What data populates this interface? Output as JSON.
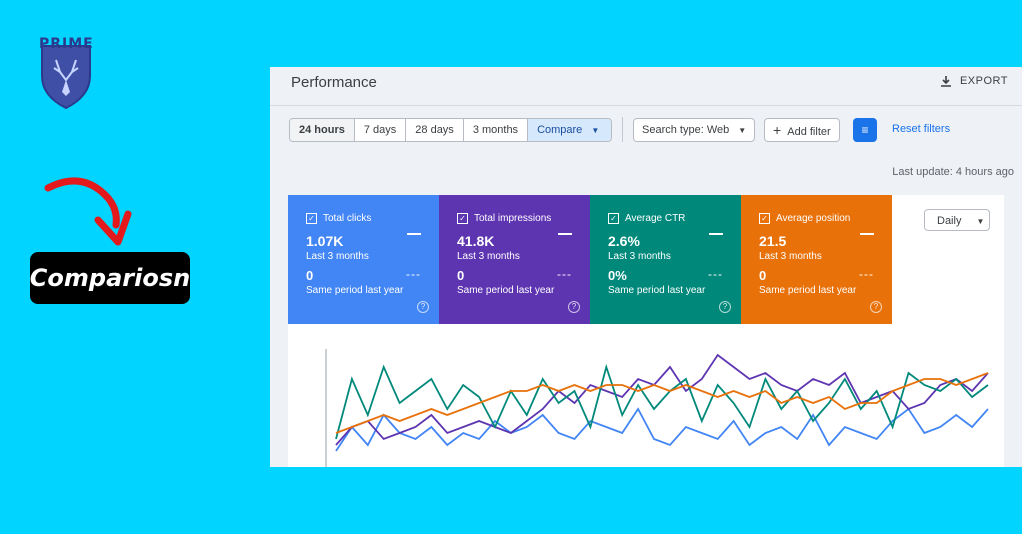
{
  "brand": {
    "logo_text": "PRIME"
  },
  "badge": {
    "label": "Compariosn"
  },
  "header": {
    "title": "Performance",
    "export_label": "EXPORT"
  },
  "date_ranges": [
    {
      "label": "24 hours",
      "active": true
    },
    {
      "label": "7 days"
    },
    {
      "label": "28 days"
    },
    {
      "label": "3 months"
    },
    {
      "label": "Compare",
      "selected": true
    }
  ],
  "filters": {
    "search_type": "Search type: Web",
    "add_filter": "Add filter",
    "reset": "Reset filters"
  },
  "last_update": "Last update: 4 hours ago",
  "granularity": "Daily",
  "metrics": [
    {
      "name": "Total clicks",
      "value": "1.07K",
      "period": "Last 3 months",
      "compare_value": "0",
      "compare_period": "Same period last year",
      "color": "#4285f4"
    },
    {
      "name": "Total impressions",
      "value": "41.8K",
      "period": "Last 3 months",
      "compare_value": "0",
      "compare_period": "Same period last year",
      "color": "#5e35b1"
    },
    {
      "name": "Average CTR",
      "value": "2.6%",
      "period": "Last 3 months",
      "compare_value": "0%",
      "compare_period": "Same period last year",
      "color": "#00897b"
    },
    {
      "name": "Average position",
      "value": "21.5",
      "period": "Last 3 months",
      "compare_value": "0",
      "compare_period": "Same period last year",
      "color": "#e8710a"
    }
  ],
  "chart_data": {
    "type": "line",
    "title": "",
    "xlabel": "",
    "ylabel": "",
    "series": [
      {
        "values": [
          2,
          6,
          3,
          8,
          5,
          4,
          6,
          3,
          5,
          4,
          7,
          5,
          6,
          8,
          5,
          4,
          7,
          6,
          5,
          9,
          4,
          3,
          6,
          5,
          4,
          7,
          3,
          5,
          6,
          4,
          8,
          3,
          6,
          5,
          4,
          7,
          9,
          5,
          6,
          8,
          6,
          9
        ]
      },
      {
        "values": [
          3,
          6,
          7,
          4,
          5,
          6,
          8,
          5,
          6,
          7,
          6,
          5,
          7,
          9,
          12,
          10,
          13,
          12,
          11,
          14,
          13,
          16,
          12,
          14,
          18,
          16,
          14,
          15,
          13,
          12,
          14,
          13,
          15,
          10,
          11,
          12,
          9,
          10,
          13,
          14,
          12,
          15
        ]
      },
      {
        "values": [
          4,
          14,
          8,
          16,
          10,
          12,
          14,
          9,
          13,
          11,
          6,
          12,
          8,
          14,
          10,
          12,
          6,
          16,
          8,
          13,
          9,
          12,
          14,
          7,
          13,
          10,
          6,
          14,
          9,
          12,
          7,
          10,
          14,
          9,
          12,
          6,
          15,
          13,
          12,
          14,
          11,
          13
        ]
      },
      {
        "values": [
          5,
          6,
          7,
          8,
          7,
          8,
          9,
          8,
          9,
          10,
          11,
          12,
          12,
          13,
          12,
          13,
          12,
          13,
          13,
          12,
          13,
          12,
          13,
          12,
          11,
          12,
          11,
          12,
          10,
          11,
          10,
          11,
          9,
          10,
          10,
          12,
          13,
          14,
          14,
          13,
          14,
          15
        ]
      }
    ],
    "colors": [
      "#4285f4",
      "#5e35b1",
      "#00897b",
      "#e8710a"
    ]
  }
}
